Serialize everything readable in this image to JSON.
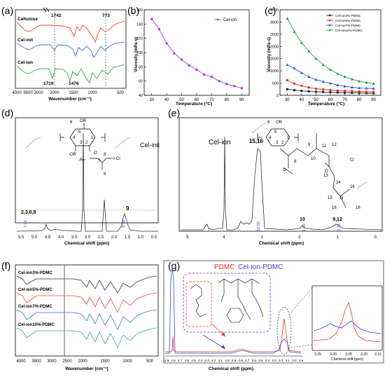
{
  "panels": {
    "a": {
      "label": "(a)",
      "xlabel": "Wavenumber (cm⁻¹)",
      "ticks": [
        "4000",
        "3500",
        "3000",
        "2000",
        "1500",
        "1000",
        "500"
      ],
      "series": [
        "Cellulose",
        "Cel-init",
        "Cel-ion"
      ],
      "colors": [
        "#e8443a",
        "#3d6fd8",
        "#2fa84a"
      ],
      "annotations": [
        "1742",
        "773",
        "1719",
        "1476"
      ]
    },
    "b": {
      "label": "(b)",
      "xlabel": "Temperature (°C)",
      "ylabel": "Viscosity (mPa·s)",
      "legend": "Cel-ion"
    },
    "c": {
      "label": "(c)",
      "xlabel": "Temperature (°C)",
      "ylabel": "Viscosity (mPa·s)"
    },
    "d": {
      "label": "(d)",
      "legend": "Cel-init",
      "xlabel": "Chemical shift (ppm)",
      "ticks": [
        "5.5",
        "5.0",
        "4.5",
        "4.0",
        "3.5",
        "3.0",
        "2.5",
        "2.0",
        "1.5",
        "1.0",
        "0.5"
      ],
      "peak_labels": [
        "2,3,6,8",
        "9"
      ],
      "integrals": [
        "7.02",
        "9.00"
      ],
      "structure_labels": [
        "6",
        "5",
        "4",
        "3",
        "2",
        "1",
        "OR",
        "-OR",
        "-R=",
        "8",
        "7",
        "Cl",
        "9",
        "O"
      ]
    },
    "e": {
      "label": "(e)",
      "legend": "Cel-ion",
      "xlabel": "Chemical shift (ppm)",
      "ticks": [
        "5",
        "4",
        "3",
        "2",
        "1",
        "0"
      ],
      "peak_labels": [
        "15,16",
        "10",
        "9,12"
      ],
      "integrals": [
        "10.00",
        "1.92",
        "3.38"
      ],
      "structure_labels": [
        "6",
        "5",
        "4",
        "3",
        "2",
        "1",
        "OR",
        "9",
        "8",
        "11",
        "12",
        "10",
        "13",
        "14",
        "15",
        "16",
        "16",
        "16",
        "Cl",
        "O",
        "O",
        "N"
      ]
    },
    "f": {
      "label": "(f)",
      "xlabel": "Wavenumber (cm⁻¹)",
      "ticks": [
        "4000",
        "3500",
        "3000",
        "2500",
        "2000",
        "1500",
        "1000",
        "500"
      ],
      "series": [
        "Cel-ion3%-PDMC",
        "Cel-ion5%-PDMC",
        "Cel-ion7%-PDMC",
        "Cel-ion10%-PDMC"
      ],
      "colors": [
        "#333333",
        "#e8443a",
        "#3d6fd8",
        "#2fa89a"
      ]
    },
    "g": {
      "label": "(g)",
      "xlabel": "Chemical shift (ppm)",
      "ticks": [
        "4.9",
        "4.8",
        "4.7",
        "4.6",
        "4.5",
        "4.4",
        "4.3",
        "4.2",
        "4.1",
        "4.0",
        "3.9",
        "3.8",
        "3.7",
        "3.6",
        "3.5",
        "3.4",
        "3.3",
        "3.2",
        "3.1",
        "3.0",
        "2.9"
      ],
      "legend_red": "PDMC",
      "legend_blue": "Cel-ion-PDMC",
      "inset_ticks": [
        "3.35",
        "3.30",
        "3.25",
        "3.20",
        "3.15"
      ],
      "inset_xlabel": "Chemical shift (ppm)"
    }
  },
  "chart_data": [
    {
      "type": "line",
      "title": "",
      "xlabel": "Temperature (°C)",
      "ylabel": "Viscosity (mPa·s)",
      "xlim": [
        25,
        95
      ],
      "ylim": [
        40,
        160
      ],
      "xticks": [
        30,
        40,
        50,
        60,
        70,
        80,
        90
      ],
      "yticks": [
        40,
        60,
        80,
        100,
        120,
        140,
        160
      ],
      "legend_position": "top-right",
      "series": [
        {
          "name": "Cel-ion",
          "color": "#a040d0",
          "x": [
            30,
            35,
            40,
            45,
            50,
            55,
            60,
            65,
            70,
            75,
            80,
            85,
            90
          ],
          "y": [
            147,
            133,
            113,
            99,
            90,
            82,
            76,
            69,
            66,
            60,
            56,
            53,
            50
          ]
        }
      ]
    },
    {
      "type": "line",
      "title": "",
      "xlabel": "Temperature (°C)",
      "ylabel": "Viscosity (mPa·s)",
      "xlim": [
        25,
        95
      ],
      "ylim": [
        0,
        3500
      ],
      "xticks": [
        30,
        40,
        50,
        60,
        70,
        80,
        90
      ],
      "yticks": [
        0,
        500,
        1000,
        1500,
        2000,
        2500,
        3000,
        3500
      ],
      "legend_position": "top-right",
      "series": [
        {
          "name": "Cel-ion3%-PDMC",
          "color": "#222222",
          "x": [
            30,
            35,
            40,
            45,
            50,
            55,
            60,
            65,
            70,
            75,
            80,
            85,
            90
          ],
          "y": [
            250,
            210,
            180,
            160,
            145,
            135,
            125,
            115,
            108,
            100,
            95,
            90,
            85
          ]
        },
        {
          "name": "Cel-ion5%-PDMC",
          "color": "#e8302a",
          "x": [
            30,
            35,
            40,
            45,
            50,
            55,
            60,
            65,
            70,
            75,
            80,
            85,
            90
          ],
          "y": [
            620,
            480,
            390,
            320,
            270,
            240,
            215,
            195,
            180,
            165,
            155,
            145,
            140
          ]
        },
        {
          "name": "Cel-ion7%-PDMC",
          "color": "#2f55e0",
          "x": [
            30,
            35,
            40,
            45,
            50,
            55,
            60,
            65,
            70,
            75,
            80,
            85,
            90
          ],
          "y": [
            1250,
            1100,
            920,
            760,
            640,
            560,
            490,
            420,
            370,
            330,
            300,
            290,
            280
          ]
        },
        {
          "name": "Cel-ion10%-PDMC",
          "color": "#20a040",
          "x": [
            30,
            35,
            40,
            45,
            50,
            55,
            60,
            65,
            70,
            75,
            80,
            85,
            90
          ],
          "y": [
            3150,
            2600,
            2150,
            1800,
            1500,
            1250,
            1050,
            880,
            760,
            660,
            580,
            520,
            480
          ]
        }
      ]
    }
  ]
}
